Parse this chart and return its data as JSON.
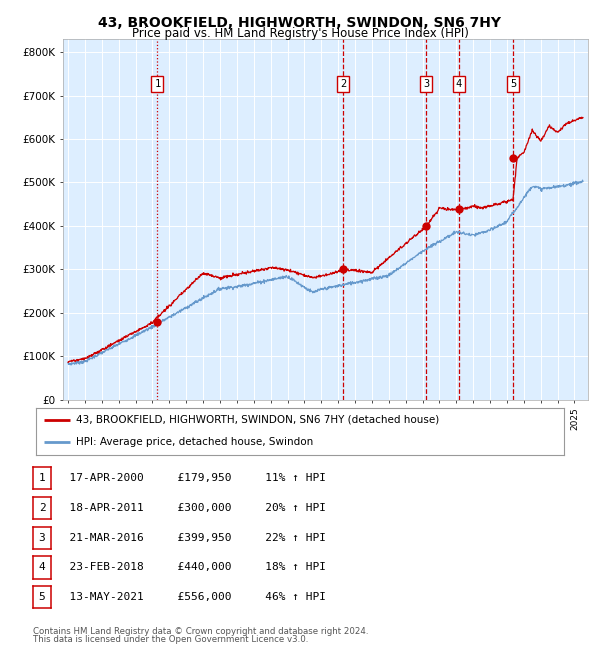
{
  "title": "43, BROOKFIELD, HIGHWORTH, SWINDON, SN6 7HY",
  "subtitle": "Price paid vs. HM Land Registry's House Price Index (HPI)",
  "legend_line1": "43, BROOKFIELD, HIGHWORTH, SWINDON, SN6 7HY (detached house)",
  "legend_line2": "HPI: Average price, detached house, Swindon",
  "footer1": "Contains HM Land Registry data © Crown copyright and database right 2024.",
  "footer2": "This data is licensed under the Open Government Licence v3.0.",
  "red_color": "#cc0000",
  "blue_color": "#6699cc",
  "bg_color": "#ddeeff",
  "grid_color": "#ffffff",
  "sales": [
    {
      "num": 1,
      "date_str": "17-APR-2000",
      "date_x": 2000.29,
      "price": 179950,
      "pct": "11%",
      "vline_style": "dotted"
    },
    {
      "num": 2,
      "date_str": "18-APR-2011",
      "date_x": 2011.29,
      "price": 300000,
      "pct": "20%",
      "vline_style": "dashed"
    },
    {
      "num": 3,
      "date_str": "21-MAR-2016",
      "date_x": 2016.22,
      "price": 399950,
      "pct": "22%",
      "vline_style": "dashed"
    },
    {
      "num": 4,
      "date_str": "23-FEB-2018",
      "date_x": 2018.14,
      "price": 440000,
      "pct": "18%",
      "vline_style": "dashed"
    },
    {
      "num": 5,
      "date_str": "13-MAY-2021",
      "date_x": 2021.36,
      "price": 556000,
      "pct": "46%",
      "vline_style": "dashed"
    }
  ],
  "ylim": [
    0,
    830000
  ],
  "xlim_start": 1994.7,
  "xlim_end": 2025.8,
  "yticks": [
    0,
    100000,
    200000,
    300000,
    400000,
    500000,
    600000,
    700000,
    800000
  ],
  "ytick_labels": [
    "£0",
    "£100K",
    "£200K",
    "£300K",
    "£400K",
    "£500K",
    "£600K",
    "£700K",
    "£800K"
  ]
}
